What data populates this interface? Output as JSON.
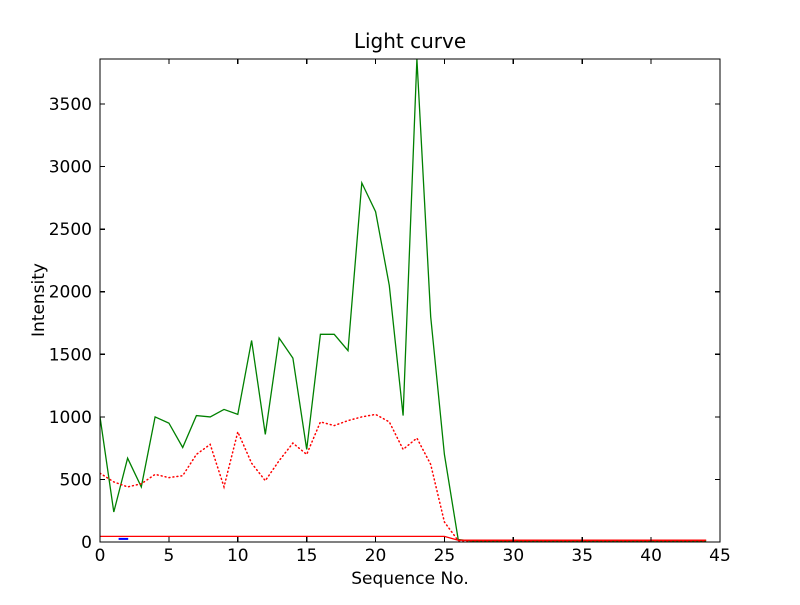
{
  "page": {
    "background": "#ffffff"
  },
  "chart_data": {
    "type": "line",
    "title": "Light curve",
    "xlabel": "Sequence No.",
    "ylabel": "Intensity",
    "xlim": [
      0,
      45
    ],
    "ylim": [
      0,
      3860
    ],
    "xticks": [
      0,
      5,
      10,
      15,
      20,
      25,
      30,
      35,
      40,
      45
    ],
    "yticks": [
      0,
      500,
      1000,
      1500,
      2000,
      2500,
      3000,
      3500
    ],
    "grid": false,
    "tick_style": "inward-all-four-spines",
    "axes_color": "#000000",
    "background": "#ffffff",
    "series": [
      {
        "name": "intensity-main-green",
        "color": "#008000",
        "line_style": "solid",
        "width": 1.3,
        "x_start": 0,
        "values": [
          1000,
          240,
          670,
          440,
          1000,
          950,
          755,
          1010,
          1000,
          1060,
          1020,
          1610,
          860,
          1630,
          1470,
          740,
          1660,
          1660,
          1530,
          2870,
          2640,
          2050,
          1010,
          3860,
          1800,
          700,
          20,
          8,
          8,
          8,
          8,
          8,
          8,
          8,
          8,
          8,
          8,
          8,
          8,
          8,
          8,
          8,
          8,
          8,
          8
        ]
      },
      {
        "name": "intensity-secondary-red-dotted",
        "color": "#ff0000",
        "line_style": "dotted",
        "width": 1.5,
        "x_start": 0,
        "values": [
          550,
          480,
          440,
          465,
          540,
          515,
          530,
          700,
          780,
          440,
          880,
          630,
          490,
          650,
          790,
          700,
          960,
          930,
          970,
          1000,
          1020,
          960,
          740,
          830,
          620,
          160,
          10,
          10,
          10,
          10,
          10,
          10,
          10,
          10,
          10,
          10,
          10,
          10,
          10,
          10,
          10,
          10,
          10,
          10,
          10
        ]
      },
      {
        "name": "baseline-red-solid",
        "color": "#ff0000",
        "line_style": "solid",
        "width": 1.3,
        "points": [
          [
            0,
            45
          ],
          [
            25,
            45
          ],
          [
            26,
            14
          ],
          [
            44,
            14
          ]
        ]
      },
      {
        "name": "baseline-blue-segment",
        "color": "#0000ff",
        "line_style": "solid",
        "width": 2,
        "points": [
          [
            1.35,
            25
          ],
          [
            2.05,
            25
          ]
        ]
      }
    ]
  }
}
